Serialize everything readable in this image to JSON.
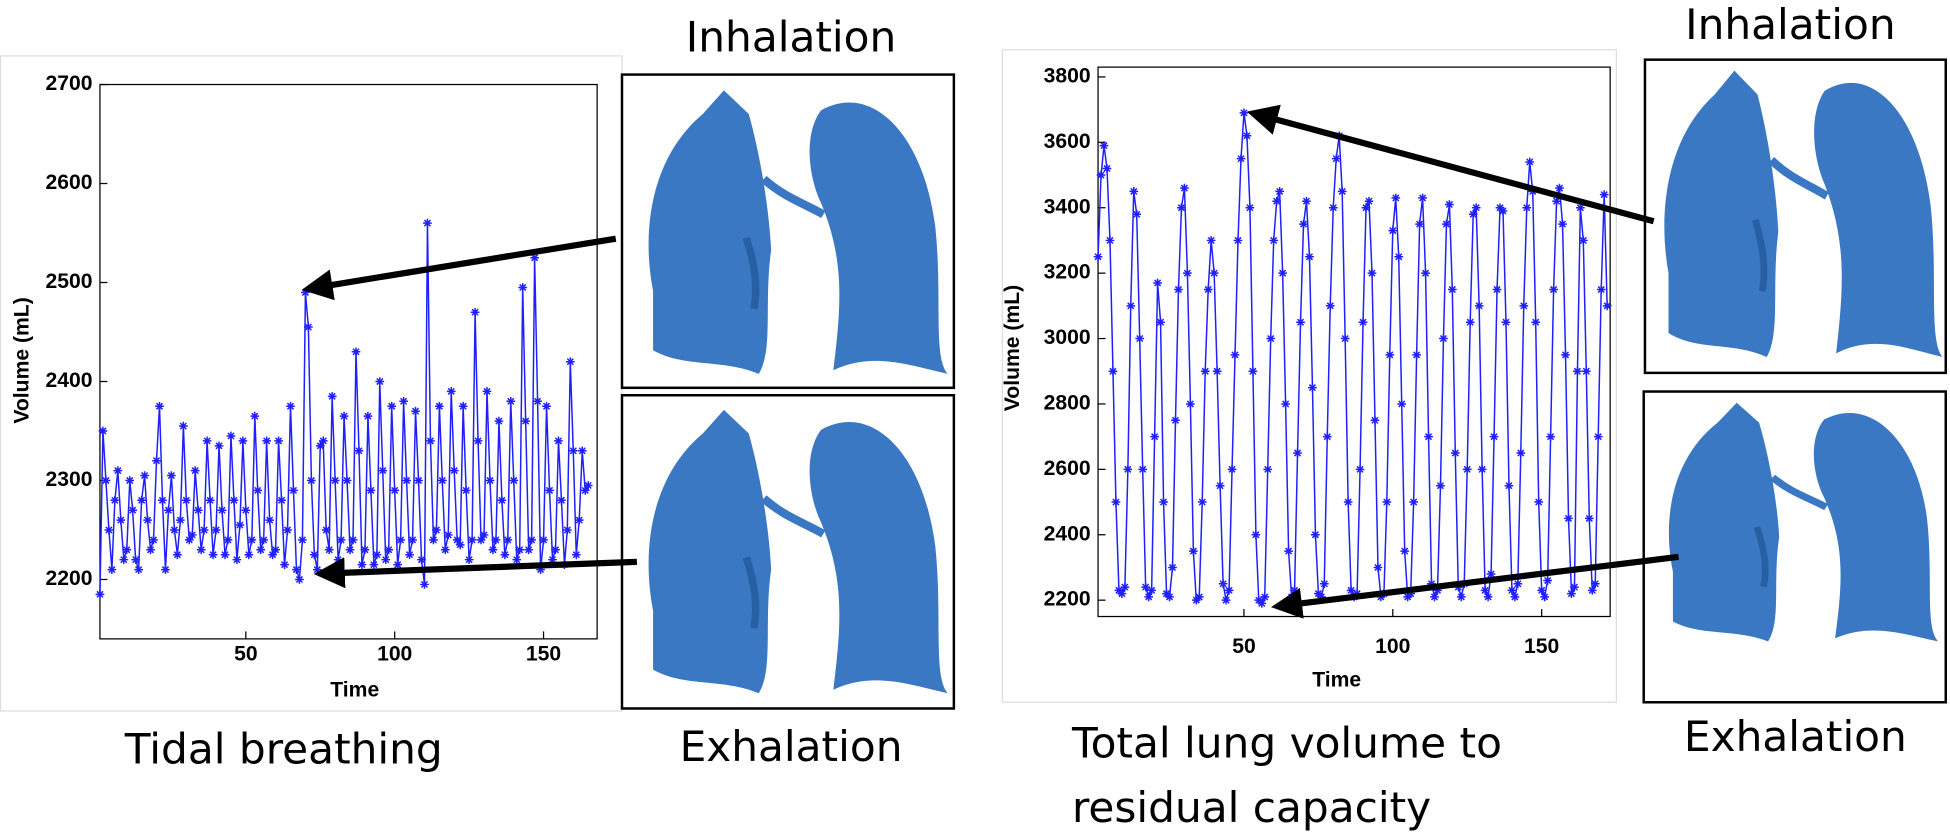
{
  "chart_data": [
    {
      "type": "line",
      "caption": [
        "Tidal breathing"
      ],
      "annotations": [
        "Inhalation",
        "Exhalation"
      ],
      "xlabel": "Time",
      "ylabel": "Volume (mL)",
      "color": "#1f1fff",
      "xlim": [
        1,
        168
      ],
      "xticks": [
        50,
        100,
        150
      ],
      "ylim": [
        2140,
        2700
      ],
      "yticks": [
        2200,
        2300,
        2400,
        2500,
        2600,
        2700
      ],
      "x": [
        1,
        2,
        3,
        4,
        5,
        6,
        7,
        8,
        9,
        10,
        11,
        12,
        13,
        14,
        15,
        16,
        17,
        18,
        19,
        20,
        21,
        22,
        23,
        24,
        25,
        26,
        27,
        28,
        29,
        30,
        31,
        32,
        33,
        34,
        35,
        36,
        37,
        38,
        39,
        40,
        41,
        42,
        43,
        44,
        45,
        46,
        47,
        48,
        49,
        50,
        51,
        52,
        53,
        54,
        55,
        56,
        57,
        58,
        59,
        60,
        61,
        62,
        63,
        64,
        65,
        66,
        67,
        68,
        69,
        70,
        71,
        72,
        73,
        74,
        75,
        76,
        77,
        78,
        79,
        80,
        81,
        82,
        83,
        84,
        85,
        86,
        87,
        88,
        89,
        90,
        91,
        92,
        93,
        94,
        95,
        96,
        97,
        98,
        99,
        100,
        101,
        102,
        103,
        104,
        105,
        106,
        107,
        108,
        109,
        110,
        111,
        112,
        113,
        114,
        115,
        116,
        117,
        118,
        119,
        120,
        121,
        122,
        123,
        124,
        125,
        126,
        127,
        128,
        129,
        130,
        131,
        132,
        133,
        134,
        135,
        136,
        137,
        138,
        139,
        140,
        141,
        142,
        143,
        144,
        145,
        146,
        147,
        148,
        149,
        150,
        151,
        152,
        153,
        154,
        155,
        156,
        157,
        158,
        159,
        160,
        161,
        162,
        163,
        164,
        165
      ],
      "values": [
        2185,
        2350,
        2300,
        2250,
        2210,
        2280,
        2310,
        2260,
        2220,
        2230,
        2300,
        2270,
        2220,
        2210,
        2280,
        2305,
        2260,
        2230,
        2240,
        2320,
        2375,
        2280,
        2210,
        2270,
        2305,
        2250,
        2225,
        2260,
        2355,
        2280,
        2240,
        2245,
        2310,
        2270,
        2230,
        2250,
        2340,
        2280,
        2225,
        2250,
        2335,
        2270,
        2225,
        2240,
        2345,
        2280,
        2220,
        2255,
        2340,
        2270,
        2225,
        2240,
        2365,
        2290,
        2230,
        2240,
        2340,
        2260,
        2225,
        2230,
        2340,
        2280,
        2215,
        2250,
        2375,
        2290,
        2210,
        2200,
        2240,
        2490,
        2455,
        2300,
        2225,
        2210,
        2335,
        2340,
        2250,
        2230,
        2385,
        2300,
        2220,
        2240,
        2365,
        2300,
        2230,
        2240,
        2430,
        2330,
        2215,
        2230,
        2365,
        2290,
        2215,
        2225,
        2400,
        2310,
        2220,
        2230,
        2375,
        2290,
        2215,
        2240,
        2380,
        2300,
        2225,
        2240,
        2370,
        2300,
        2220,
        2195,
        2560,
        2340,
        2240,
        2250,
        2375,
        2300,
        2230,
        2245,
        2390,
        2310,
        2240,
        2235,
        2375,
        2290,
        2220,
        2240,
        2470,
        2340,
        2240,
        2245,
        2390,
        2300,
        2230,
        2240,
        2360,
        2280,
        2225,
        2240,
        2380,
        2300,
        2220,
        2230,
        2495,
        2360,
        2230,
        2240,
        2525,
        2380,
        2210,
        2240,
        2375,
        2290,
        2220,
        2230,
        2340,
        2280,
        2215,
        2250,
        2420,
        2330,
        2225,
        2260,
        2330,
        2290,
        2295
      ]
    },
    {
      "type": "line",
      "caption": [
        "Total lung volume to",
        "residual capacity"
      ],
      "annotations": [
        "Inhalation",
        "Exhalation"
      ],
      "xlabel": "Time",
      "ylabel": "Volume (mL)",
      "color": "#1f1fff",
      "xlim": [
        1,
        173
      ],
      "xticks": [
        50,
        100,
        150
      ],
      "ylim": [
        2150,
        3830
      ],
      "yticks": [
        2200,
        2400,
        2600,
        2800,
        3000,
        3200,
        3400,
        3600,
        3800
      ],
      "x": [
        1,
        2,
        3,
        4,
        5,
        6,
        7,
        8,
        9,
        10,
        11,
        12,
        13,
        14,
        15,
        16,
        17,
        18,
        19,
        20,
        21,
        22,
        23,
        24,
        25,
        26,
        27,
        28,
        29,
        30,
        31,
        32,
        33,
        34,
        35,
        36,
        37,
        38,
        39,
        40,
        41,
        42,
        43,
        44,
        45,
        46,
        47,
        48,
        49,
        50,
        51,
        52,
        53,
        54,
        55,
        56,
        57,
        58,
        59,
        60,
        61,
        62,
        63,
        64,
        65,
        66,
        67,
        68,
        69,
        70,
        71,
        72,
        73,
        74,
        75,
        76,
        77,
        78,
        79,
        80,
        81,
        82,
        83,
        84,
        85,
        86,
        87,
        88,
        89,
        90,
        91,
        92,
        93,
        94,
        95,
        96,
        97,
        98,
        99,
        100,
        101,
        102,
        103,
        104,
        105,
        106,
        107,
        108,
        109,
        110,
        111,
        112,
        113,
        114,
        115,
        116,
        117,
        118,
        119,
        120,
        121,
        122,
        123,
        124,
        125,
        126,
        127,
        128,
        129,
        130,
        131,
        132,
        133,
        134,
        135,
        136,
        137,
        138,
        139,
        140,
        141,
        142,
        143,
        144,
        145,
        146,
        147,
        148,
        149,
        150,
        151,
        152,
        153,
        154,
        155,
        156,
        157,
        158,
        159,
        160,
        161,
        162,
        163,
        164,
        165,
        166,
        167,
        168,
        169,
        170,
        171,
        172
      ],
      "values": [
        3250,
        3500,
        3590,
        3520,
        3300,
        2900,
        2500,
        2230,
        2220,
        2240,
        2600,
        3100,
        3450,
        3380,
        3000,
        2600,
        2240,
        2210,
        2230,
        2700,
        3170,
        3050,
        2500,
        2220,
        2210,
        2300,
        2750,
        3150,
        3400,
        3460,
        3200,
        2800,
        2350,
        2200,
        2210,
        2500,
        2900,
        3150,
        3300,
        3200,
        2900,
        2550,
        2250,
        2200,
        2230,
        2600,
        2950,
        3300,
        3550,
        3690,
        3620,
        3400,
        2900,
        2400,
        2200,
        2190,
        2210,
        2600,
        3000,
        3300,
        3420,
        3450,
        3200,
        2800,
        2350,
        2210,
        2230,
        2650,
        3050,
        3350,
        3420,
        3250,
        2850,
        2400,
        2220,
        2210,
        2250,
        2700,
        3100,
        3400,
        3550,
        3620,
        3450,
        3000,
        2500,
        2230,
        2210,
        2220,
        2600,
        3050,
        3400,
        3420,
        3200,
        2750,
        2300,
        2210,
        2220,
        2500,
        2950,
        3330,
        3430,
        3250,
        2800,
        2350,
        2210,
        2220,
        2500,
        2950,
        3350,
        3430,
        3200,
        2700,
        2250,
        2210,
        2230,
        2550,
        3000,
        3350,
        3410,
        3150,
        2650,
        2240,
        2210,
        2250,
        2600,
        3050,
        3380,
        3400,
        3100,
        2600,
        2230,
        2210,
        2280,
        2700,
        3150,
        3400,
        3390,
        3050,
        2550,
        2230,
        2210,
        2250,
        2650,
        3100,
        3400,
        3540,
        3450,
        3050,
        2500,
        2230,
        2210,
        2260,
        2700,
        3150,
        3420,
        3460,
        3350,
        2950,
        2450,
        2220,
        2240,
        2900,
        3400,
        3300,
        2900,
        2450,
        2230,
        2250,
        2700,
        3150,
        3440,
        3100
      ]
    }
  ]
}
